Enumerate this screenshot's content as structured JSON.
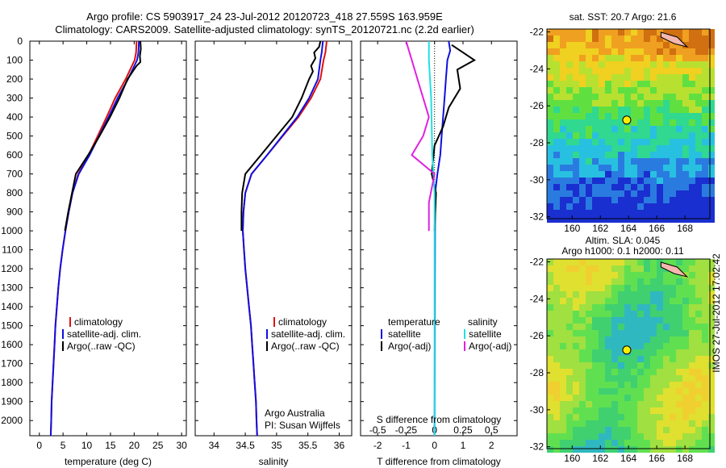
{
  "header": {
    "line1": "Argo profile: CS 5903917_24 23-Jul-2012 20120723_418 27.559S 163.959E",
    "line2": "Climatology: CARS2009. Satellite-adjusted climatology: synTS_20120721.nc (2.2d earlier)"
  },
  "colors": {
    "climatology": "#e01010",
    "satellite": "#1010e0",
    "argo": "#000000",
    "sal_satellite": "#20e0e0",
    "sal_argo": "#e020e0"
  },
  "chart_data": [
    {
      "type": "line",
      "xlabel": "temperature (deg C)",
      "ylabel": "",
      "xlim": [
        -2,
        31
      ],
      "ylim": [
        2080,
        0
      ],
      "x_ticks": [
        "0",
        "5",
        "10",
        "15",
        "20",
        "25",
        "30"
      ],
      "y_ticks": [
        "0",
        "100",
        "200",
        "300",
        "400",
        "500",
        "600",
        "700",
        "800",
        "900",
        "1000",
        "1100",
        "1200",
        "1300",
        "1400",
        "1500",
        "1600",
        "1700",
        "1800",
        "1900",
        "2000"
      ],
      "legend": [
        "climatology",
        "satellite-adj. clim.",
        "Argo(..raw -QC)"
      ],
      "series": [
        {
          "name": "climatology",
          "points": [
            [
              20.5,
              0
            ],
            [
              20.4,
              60
            ],
            [
              20.1,
              100
            ],
            [
              18.2,
              200
            ],
            [
              16.0,
              300
            ],
            [
              14.2,
              400
            ],
            [
              12.3,
              500
            ],
            [
              10.4,
              600
            ],
            [
              8.2,
              700
            ],
            [
              7.0,
              800
            ],
            [
              6.2,
              900
            ],
            [
              5.5,
              1000
            ],
            [
              4.9,
              1100
            ],
            [
              4.4,
              1200
            ],
            [
              4.0,
              1300
            ],
            [
              3.7,
              1400
            ],
            [
              3.4,
              1500
            ],
            [
              3.2,
              1600
            ],
            [
              3.0,
              1700
            ],
            [
              2.8,
              1800
            ],
            [
              2.6,
              1900
            ],
            [
              2.5,
              2000
            ],
            [
              2.4,
              2080
            ]
          ]
        },
        {
          "name": "satellite-adj. clim.",
          "points": [
            [
              21.0,
              0
            ],
            [
              20.9,
              60
            ],
            [
              20.6,
              100
            ],
            [
              18.7,
              200
            ],
            [
              16.5,
              300
            ],
            [
              14.6,
              400
            ],
            [
              12.6,
              500
            ],
            [
              10.6,
              600
            ],
            [
              8.3,
              700
            ],
            [
              7.0,
              800
            ],
            [
              6.2,
              900
            ],
            [
              5.5,
              1000
            ],
            [
              4.9,
              1100
            ],
            [
              4.4,
              1200
            ],
            [
              4.0,
              1300
            ],
            [
              3.7,
              1400
            ],
            [
              3.4,
              1500
            ],
            [
              3.2,
              1600
            ],
            [
              3.0,
              1700
            ],
            [
              2.8,
              1800
            ],
            [
              2.6,
              1900
            ],
            [
              2.5,
              2000
            ],
            [
              2.4,
              2080
            ]
          ]
        },
        {
          "name": "Argo(..raw -QC)",
          "points": [
            [
              21.3,
              0
            ],
            [
              21.4,
              40
            ],
            [
              21.2,
              80
            ],
            [
              21.3,
              110
            ],
            [
              20.5,
              130
            ],
            [
              18.6,
              200
            ],
            [
              16.9,
              300
            ],
            [
              14.9,
              400
            ],
            [
              12.7,
              500
            ],
            [
              10.3,
              600
            ],
            [
              7.7,
              700
            ],
            [
              6.9,
              800
            ],
            [
              6.1,
              900
            ],
            [
              5.4,
              1000
            ]
          ]
        }
      ]
    },
    {
      "type": "line",
      "xlabel": "salinity",
      "ylabel": "",
      "xlim": [
        33.7,
        36.2
      ],
      "ylim": [
        2080,
        0
      ],
      "x_ticks": [
        "34",
        "34.5",
        "35",
        "35.5",
        "36"
      ],
      "legend": [
        "climatology",
        "satellite-adj. clim.",
        "Argo(..raw -QC)"
      ],
      "series": [
        {
          "name": "climatology",
          "points": [
            [
              35.8,
              0
            ],
            [
              35.78,
              60
            ],
            [
              35.75,
              100
            ],
            [
              35.7,
              200
            ],
            [
              35.55,
              300
            ],
            [
              35.35,
              400
            ],
            [
              35.1,
              500
            ],
            [
              34.85,
              600
            ],
            [
              34.6,
              700
            ],
            [
              34.5,
              800
            ],
            [
              34.47,
              900
            ],
            [
              34.46,
              1000
            ],
            [
              34.48,
              1100
            ],
            [
              34.5,
              1200
            ],
            [
              34.53,
              1300
            ],
            [
              34.56,
              1400
            ],
            [
              34.59,
              1500
            ],
            [
              34.61,
              1600
            ],
            [
              34.63,
              1700
            ],
            [
              34.65,
              1800
            ],
            [
              34.67,
              1900
            ],
            [
              34.68,
              2000
            ],
            [
              34.69,
              2080
            ]
          ]
        },
        {
          "name": "satellite-adj. clim.",
          "points": [
            [
              35.74,
              0
            ],
            [
              35.72,
              60
            ],
            [
              35.7,
              100
            ],
            [
              35.66,
              200
            ],
            [
              35.52,
              300
            ],
            [
              35.33,
              400
            ],
            [
              35.09,
              500
            ],
            [
              34.85,
              600
            ],
            [
              34.6,
              700
            ],
            [
              34.5,
              800
            ],
            [
              34.47,
              900
            ],
            [
              34.46,
              1000
            ],
            [
              34.48,
              1100
            ],
            [
              34.5,
              1200
            ],
            [
              34.53,
              1300
            ],
            [
              34.56,
              1400
            ],
            [
              34.59,
              1500
            ],
            [
              34.61,
              1600
            ],
            [
              34.63,
              1700
            ],
            [
              34.65,
              1800
            ],
            [
              34.67,
              1900
            ],
            [
              34.68,
              2000
            ],
            [
              34.69,
              2080
            ]
          ]
        },
        {
          "name": "Argo(..raw -QC)",
          "points": [
            [
              35.7,
              0
            ],
            [
              35.68,
              30
            ],
            [
              35.6,
              60
            ],
            [
              35.62,
              90
            ],
            [
              35.55,
              130
            ],
            [
              35.58,
              160
            ],
            [
              35.52,
              200
            ],
            [
              35.4,
              300
            ],
            [
              35.25,
              400
            ],
            [
              35.0,
              500
            ],
            [
              34.75,
              600
            ],
            [
              34.5,
              700
            ],
            [
              34.45,
              800
            ],
            [
              34.44,
              900
            ],
            [
              34.44,
              1000
            ]
          ]
        }
      ]
    },
    {
      "type": "line",
      "xlabel": "T difference from climatology",
      "ylabel": "",
      "xlim": [
        -2.6,
        2.9
      ],
      "ylim": [
        2080,
        0
      ],
      "x_ticks": [
        "-2",
        "-1",
        "0",
        "1",
        "2"
      ],
      "top_label": "S difference from climatology",
      "top_ticks": [
        "-0.5",
        "-0.25",
        "0",
        "0.25",
        "0.5"
      ],
      "legend_title_left": "temperature",
      "legend_title_right": "salinity",
      "legend_left": [
        "satellite",
        "Argo(-adj)"
      ],
      "legend_right": [
        "satellite",
        "Argo(-adj)"
      ],
      "series": [
        {
          "name": "satellite",
          "points": [
            [
              0.5,
              0
            ],
            [
              0.55,
              50
            ],
            [
              0.45,
              100
            ],
            [
              0.4,
              200
            ],
            [
              0.35,
              300
            ],
            [
              0.3,
              400
            ],
            [
              0.25,
              500
            ],
            [
              0.2,
              600
            ],
            [
              0.1,
              700
            ],
            [
              0.02,
              800
            ],
            [
              0.0,
              2080
            ]
          ]
        },
        {
          "name": "Argo(-adj)",
          "points": [
            [
              0.6,
              20
            ],
            [
              1.0,
              60
            ],
            [
              1.4,
              100
            ],
            [
              0.8,
              150
            ],
            [
              0.9,
              250
            ],
            [
              0.5,
              350
            ],
            [
              0.3,
              450
            ],
            [
              0.0,
              550
            ],
            [
              -0.1,
              700
            ],
            [
              0.05,
              800
            ],
            [
              0.0,
              1000
            ]
          ]
        },
        {
          "name": "satellite",
          "points": [
            [
              -0.05,
              0
            ],
            [
              -0.05,
              100
            ],
            [
              -0.03,
              300
            ],
            [
              -0.02,
              600
            ],
            [
              0.0,
              800
            ],
            [
              0.0,
              2080
            ]
          ]
        },
        {
          "name": "Argo(-adj)",
          "points": [
            [
              -0.25,
              0
            ],
            [
              -0.2,
              100
            ],
            [
              -0.15,
              200
            ],
            [
              -0.1,
              300
            ],
            [
              -0.05,
              400
            ],
            [
              -0.1,
              500
            ],
            [
              -0.2,
              600
            ],
            [
              0.0,
              700
            ],
            [
              -0.05,
              850
            ],
            [
              -0.05,
              1000
            ]
          ]
        }
      ]
    }
  ],
  "maps": {
    "sst_title": "sat. SST: 20.7  Argo: 21.6",
    "sla_title1": "Altim. SLA: 0.045",
    "sla_title2": "Argo h1000: 0.1 h2000: 0.11",
    "x_ticks": [
      "160",
      "162",
      "164",
      "166",
      "168"
    ],
    "y_ticks": [
      "-22",
      "-24",
      "-26",
      "-28",
      "-30",
      "-32"
    ]
  },
  "footer": {
    "credit1": "Argo Australia",
    "credit2": "PI: Susan Wijffels",
    "imos": "IMOS 27-Jul-2012 17:02:42"
  }
}
